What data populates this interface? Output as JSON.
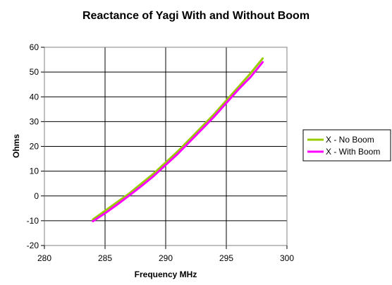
{
  "chart_data": {
    "type": "line",
    "title": "Reactance of Yagi With and Without Boom",
    "xlabel": "Frequency MHz",
    "ylabel": "Ohms",
    "xlim": [
      280,
      300
    ],
    "ylim": [
      -20,
      60
    ],
    "xticks": [
      "280",
      "285",
      "290",
      "295",
      "300"
    ],
    "yticks": [
      "-20",
      "-10",
      "0",
      "10",
      "20",
      "30",
      "40",
      "50",
      "60"
    ],
    "grid": true,
    "legend_position": "right",
    "series": [
      {
        "name": "X - No Boom",
        "color": "#99cc00",
        "x": [
          284,
          285,
          286,
          287,
          288,
          289,
          290,
          291,
          292,
          293,
          294,
          295,
          296,
          297,
          298
        ],
        "y": [
          -9.5,
          -6,
          -2.5,
          1,
          5,
          9,
          13.5,
          18,
          23,
          28,
          33,
          38.5,
          44,
          49.5,
          55.5
        ]
      },
      {
        "name": "X - With Boom",
        "color": "#ff00ff",
        "x": [
          284,
          285,
          286,
          287,
          288,
          289,
          290,
          291,
          292,
          293,
          294,
          295,
          296,
          297,
          298
        ],
        "y": [
          -10.2,
          -7,
          -3.5,
          0.2,
          4,
          8,
          12.5,
          17,
          22,
          27,
          32,
          37.5,
          43,
          48,
          54
        ]
      }
    ]
  }
}
